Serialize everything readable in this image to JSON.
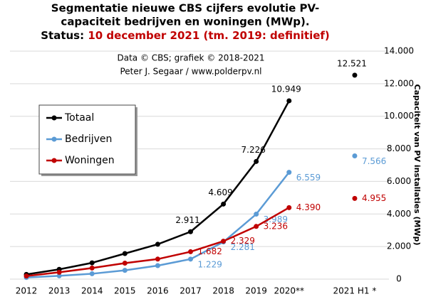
{
  "chart_data": {
    "type": "line",
    "title": [
      "Segmentatie nieuwe CBS cijfers evolutie PV-",
      "capaciteit bedrijven en woningen (MWp)."
    ],
    "subtitle_label": "Status: ",
    "subtitle_date": "10 december 2021 (tm. 2019: definitief)",
    "annotations": [
      "Data © CBS; grafiek © 2018-2021",
      "Peter J. Segaar / www.polderpv.nl"
    ],
    "y_label": "Capaciteit van PV installaties (MWp)",
    "categories": [
      "2012",
      "2013",
      "2014",
      "2015",
      "2016",
      "2017",
      "2018",
      "2019",
      "2020**",
      null,
      "2021 H1 *"
    ],
    "series": [
      {
        "name": "Totaal",
        "color": "#000000",
        "values": [
          290,
          600,
          1000,
          1570,
          2140,
          2911,
          4609,
          7226,
          10949,
          null,
          12521
        ],
        "value_labels": [
          null,
          null,
          null,
          null,
          null,
          "2.911",
          "4.609",
          "7.226",
          "10.949",
          null,
          "12.521"
        ]
      },
      {
        "name": "Bedrijven",
        "color": "#5b9bd5",
        "values": [
          100,
          200,
          330,
          540,
          830,
          1229,
          2281,
          3989,
          6559,
          null,
          7566
        ],
        "value_labels": [
          null,
          null,
          null,
          null,
          null,
          "1.229",
          "2.281",
          "3.989",
          "6.559",
          null,
          "7.566"
        ]
      },
      {
        "name": "Woningen",
        "color": "#c00000",
        "values": [
          190,
          420,
          680,
          980,
          1230,
          1682,
          2329,
          3236,
          4390,
          null,
          4955
        ],
        "value_labels": [
          null,
          null,
          null,
          null,
          null,
          "1.682",
          "2.329",
          "3.236",
          "4.390",
          null,
          "4.955"
        ]
      }
    ],
    "ylim": [
      0,
      14000
    ],
    "yticks": [
      0,
      {
        "value": 2000,
        "label": "2.000"
      },
      {
        "value": 4000,
        "label": "4.000"
      },
      {
        "value": 6000,
        "label": "6.000"
      },
      {
        "value": 8000,
        "label": "8.000"
      },
      {
        "value": 10000,
        "label": "10.000"
      },
      {
        "value": 12000,
        "label": "12.000"
      },
      {
        "value": 14000,
        "label": "14.000"
      }
    ],
    "grid": true,
    "legend": "upper left"
  }
}
